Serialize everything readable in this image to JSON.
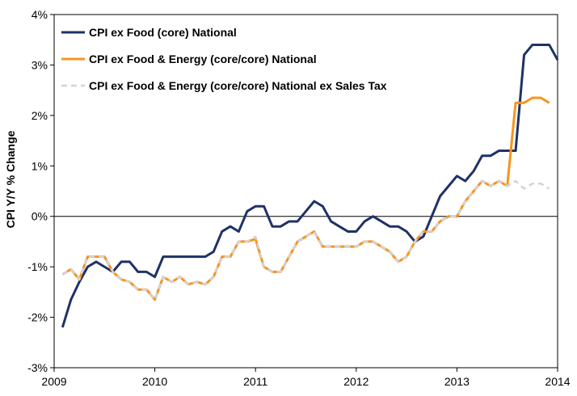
{
  "chart_data": {
    "type": "line",
    "title": "",
    "xlabel": "",
    "ylabel": "CPI Y/Y % Change",
    "xlim": [
      2009,
      2014
    ],
    "ylim": [
      -3,
      4
    ],
    "x_ticks": [
      2009,
      2010,
      2011,
      2012,
      2013,
      2014
    ],
    "x_tick_labels": [
      "2009",
      "2010",
      "2011",
      "2012",
      "2013",
      "2014"
    ],
    "y_ticks": [
      -3,
      -2,
      -1,
      0,
      1,
      2,
      3,
      4
    ],
    "y_tick_labels": [
      "-3%",
      "-2%",
      "-1%",
      "0%",
      "1%",
      "2%",
      "3%",
      "4%"
    ],
    "grid": false,
    "legend_position": "top-left",
    "series": [
      {
        "name": "CPI ex Food (core) National",
        "color": "#1f3267",
        "style": "solid",
        "points": [
          [
            2009.083,
            -2.2
          ],
          [
            2009.167,
            -1.65
          ],
          [
            2009.25,
            -1.3
          ],
          [
            2009.333,
            -1.0
          ],
          [
            2009.417,
            -0.9
          ],
          [
            2009.5,
            -1.0
          ],
          [
            2009.583,
            -1.1
          ],
          [
            2009.667,
            -0.9
          ],
          [
            2009.75,
            -0.9
          ],
          [
            2009.833,
            -1.1
          ],
          [
            2009.917,
            -1.1
          ],
          [
            2010.0,
            -1.2
          ],
          [
            2010.083,
            -0.8
          ],
          [
            2010.167,
            -0.8
          ],
          [
            2010.25,
            -0.8
          ],
          [
            2010.333,
            -0.8
          ],
          [
            2010.417,
            -0.8
          ],
          [
            2010.5,
            -0.8
          ],
          [
            2010.583,
            -0.7
          ],
          [
            2010.667,
            -0.3
          ],
          [
            2010.75,
            -0.2
          ],
          [
            2010.833,
            -0.3
          ],
          [
            2010.917,
            0.1
          ],
          [
            2011.0,
            0.2
          ],
          [
            2011.083,
            0.2
          ],
          [
            2011.167,
            -0.2
          ],
          [
            2011.25,
            -0.2
          ],
          [
            2011.333,
            -0.1
          ],
          [
            2011.417,
            -0.1
          ],
          [
            2011.5,
            0.1
          ],
          [
            2011.583,
            0.3
          ],
          [
            2011.667,
            0.2
          ],
          [
            2011.75,
            -0.1
          ],
          [
            2011.833,
            -0.2
          ],
          [
            2011.917,
            -0.3
          ],
          [
            2012.0,
            -0.3
          ],
          [
            2012.083,
            -0.1
          ],
          [
            2012.167,
            0.0
          ],
          [
            2012.25,
            -0.1
          ],
          [
            2012.333,
            -0.2
          ],
          [
            2012.417,
            -0.2
          ],
          [
            2012.5,
            -0.3
          ],
          [
            2012.583,
            -0.5
          ],
          [
            2012.667,
            -0.4
          ],
          [
            2012.75,
            0.0
          ],
          [
            2012.833,
            0.4
          ],
          [
            2012.917,
            0.6
          ],
          [
            2013.0,
            0.8
          ],
          [
            2013.083,
            0.7
          ],
          [
            2013.167,
            0.9
          ],
          [
            2013.25,
            1.2
          ],
          [
            2013.333,
            1.2
          ],
          [
            2013.417,
            1.3
          ],
          [
            2013.5,
            1.3
          ],
          [
            2013.583,
            1.3
          ],
          [
            2013.667,
            3.2
          ],
          [
            2013.75,
            3.4
          ],
          [
            2013.833,
            3.4
          ],
          [
            2013.917,
            3.4
          ],
          [
            2014.0,
            3.1
          ]
        ]
      },
      {
        "name": "CPI ex Food & Energy (core/core) National",
        "color": "#f7941d",
        "style": "solid",
        "points": [
          [
            2009.083,
            -1.15
          ],
          [
            2009.167,
            -1.05
          ],
          [
            2009.25,
            -1.25
          ],
          [
            2009.333,
            -0.8
          ],
          [
            2009.417,
            -0.8
          ],
          [
            2009.5,
            -0.8
          ],
          [
            2009.583,
            -1.1
          ],
          [
            2009.667,
            -1.25
          ],
          [
            2009.75,
            -1.3
          ],
          [
            2009.833,
            -1.45
          ],
          [
            2009.917,
            -1.45
          ],
          [
            2010.0,
            -1.65
          ],
          [
            2010.083,
            -1.2
          ],
          [
            2010.167,
            -1.3
          ],
          [
            2010.25,
            -1.2
          ],
          [
            2010.333,
            -1.35
          ],
          [
            2010.417,
            -1.3
          ],
          [
            2010.5,
            -1.35
          ],
          [
            2010.583,
            -1.2
          ],
          [
            2010.667,
            -0.8
          ],
          [
            2010.75,
            -0.8
          ],
          [
            2010.833,
            -0.5
          ],
          [
            2010.917,
            -0.5
          ],
          [
            2011.0,
            -0.45
          ],
          [
            2011.083,
            -1.0
          ],
          [
            2011.167,
            -1.1
          ],
          [
            2011.25,
            -1.1
          ],
          [
            2011.333,
            -0.8
          ],
          [
            2011.417,
            -0.5
          ],
          [
            2011.5,
            -0.4
          ],
          [
            2011.583,
            -0.3
          ],
          [
            2011.667,
            -0.6
          ],
          [
            2011.75,
            -0.6
          ],
          [
            2011.833,
            -0.6
          ],
          [
            2011.917,
            -0.6
          ],
          [
            2012.0,
            -0.6
          ],
          [
            2012.083,
            -0.5
          ],
          [
            2012.167,
            -0.5
          ],
          [
            2012.25,
            -0.6
          ],
          [
            2012.333,
            -0.7
          ],
          [
            2012.417,
            -0.9
          ],
          [
            2012.5,
            -0.8
          ],
          [
            2012.583,
            -0.5
          ],
          [
            2012.667,
            -0.3
          ],
          [
            2012.75,
            -0.3
          ],
          [
            2012.833,
            -0.1
          ],
          [
            2012.917,
            0.0
          ],
          [
            2013.0,
            0.0
          ],
          [
            2013.083,
            0.3
          ],
          [
            2013.167,
            0.5
          ],
          [
            2013.25,
            0.7
          ],
          [
            2013.333,
            0.6
          ],
          [
            2013.417,
            0.7
          ],
          [
            2013.5,
            0.6
          ],
          [
            2013.583,
            2.25
          ],
          [
            2013.667,
            2.25
          ],
          [
            2013.75,
            2.35
          ],
          [
            2013.833,
            2.35
          ],
          [
            2013.917,
            2.25
          ]
        ]
      },
      {
        "name": "CPI ex Food & Energy (core/core) National ex Sales Tax",
        "color": "#d0d4de",
        "style": "dashed",
        "points": [
          [
            2009.083,
            -1.15
          ],
          [
            2009.167,
            -1.05
          ],
          [
            2009.25,
            -1.25
          ],
          [
            2009.333,
            -0.8
          ],
          [
            2009.417,
            -0.8
          ],
          [
            2009.5,
            -0.8
          ],
          [
            2009.583,
            -1.1
          ],
          [
            2009.667,
            -1.25
          ],
          [
            2009.75,
            -1.3
          ],
          [
            2009.833,
            -1.45
          ],
          [
            2009.917,
            -1.45
          ],
          [
            2010.0,
            -1.65
          ],
          [
            2010.083,
            -1.2
          ],
          [
            2010.167,
            -1.3
          ],
          [
            2010.25,
            -1.2
          ],
          [
            2010.333,
            -1.35
          ],
          [
            2010.417,
            -1.3
          ],
          [
            2010.5,
            -1.35
          ],
          [
            2010.583,
            -1.2
          ],
          [
            2010.667,
            -0.8
          ],
          [
            2010.75,
            -0.8
          ],
          [
            2010.833,
            -0.5
          ],
          [
            2010.917,
            -0.5
          ],
          [
            2011.0,
            -0.4
          ],
          [
            2011.083,
            -1.0
          ],
          [
            2011.167,
            -1.1
          ],
          [
            2011.25,
            -1.1
          ],
          [
            2011.333,
            -0.8
          ],
          [
            2011.417,
            -0.5
          ],
          [
            2011.5,
            -0.4
          ],
          [
            2011.583,
            -0.3
          ],
          [
            2011.667,
            -0.6
          ],
          [
            2011.75,
            -0.6
          ],
          [
            2011.833,
            -0.6
          ],
          [
            2011.917,
            -0.6
          ],
          [
            2012.0,
            -0.6
          ],
          [
            2012.083,
            -0.5
          ],
          [
            2012.167,
            -0.5
          ],
          [
            2012.25,
            -0.6
          ],
          [
            2012.333,
            -0.7
          ],
          [
            2012.417,
            -0.9
          ],
          [
            2012.5,
            -0.8
          ],
          [
            2012.583,
            -0.5
          ],
          [
            2012.667,
            -0.3
          ],
          [
            2012.75,
            -0.3
          ],
          [
            2012.833,
            -0.1
          ],
          [
            2012.917,
            0.0
          ],
          [
            2013.0,
            0.0
          ],
          [
            2013.083,
            0.3
          ],
          [
            2013.167,
            0.5
          ],
          [
            2013.25,
            0.7
          ],
          [
            2013.333,
            0.6
          ],
          [
            2013.417,
            0.7
          ],
          [
            2013.5,
            0.6
          ],
          [
            2013.583,
            0.7
          ],
          [
            2013.667,
            0.55
          ],
          [
            2013.75,
            0.65
          ],
          [
            2013.833,
            0.65
          ],
          [
            2013.917,
            0.55
          ]
        ]
      }
    ]
  }
}
